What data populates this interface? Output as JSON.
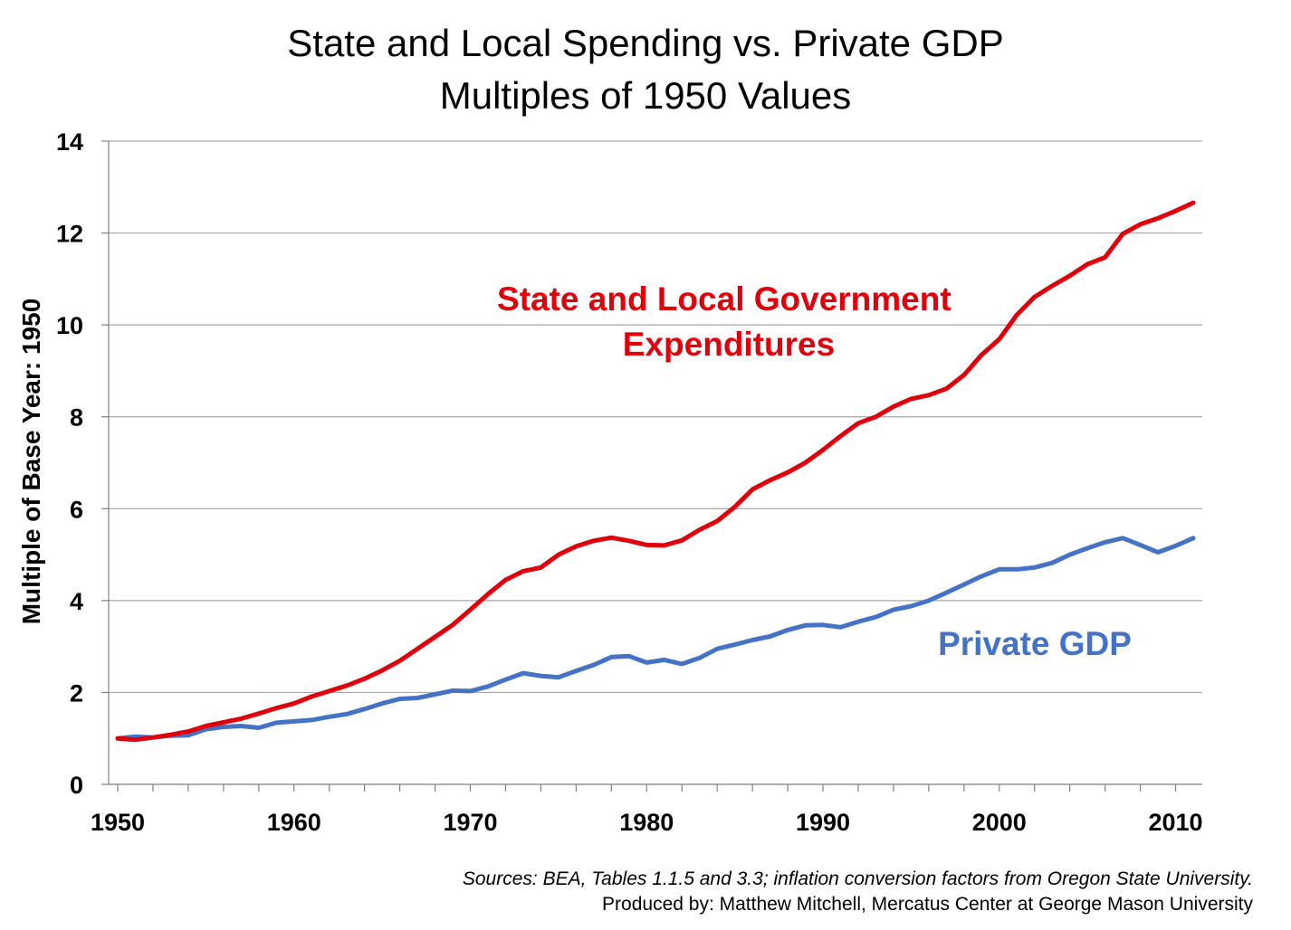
{
  "chart_data": {
    "type": "line",
    "title": [
      "State and Local Spending vs. Private GDP",
      "Multiples of 1950 Values"
    ],
    "xlabel": "",
    "ylabel": "Multiple of Base Year: 1950",
    "xlim": [
      1950,
      2011
    ],
    "ylim": [
      0,
      14
    ],
    "x_ticks": [
      1950,
      1960,
      1970,
      1980,
      1990,
      2000,
      2010
    ],
    "y_ticks": [
      0,
      2,
      4,
      6,
      8,
      10,
      12,
      14
    ],
    "grid": "horizontal",
    "x": [
      1950,
      1951,
      1952,
      1953,
      1954,
      1955,
      1956,
      1957,
      1958,
      1959,
      1960,
      1961,
      1962,
      1963,
      1964,
      1965,
      1966,
      1967,
      1968,
      1969,
      1970,
      1971,
      1972,
      1973,
      1974,
      1975,
      1976,
      1977,
      1978,
      1979,
      1980,
      1981,
      1982,
      1983,
      1984,
      1985,
      1986,
      1987,
      1988,
      1989,
      1990,
      1991,
      1992,
      1993,
      1994,
      1995,
      1996,
      1997,
      1998,
      1999,
      2000,
      2001,
      2002,
      2003,
      2004,
      2005,
      2006,
      2007,
      2008,
      2009,
      2010,
      2011
    ],
    "series": [
      {
        "name": "State and Local Government Expenditures",
        "label_lines": [
          "State and Local Government",
          "Expenditures"
        ],
        "color": "#e0000b",
        "values": [
          1.0,
          0.97,
          1.02,
          1.08,
          1.15,
          1.27,
          1.35,
          1.43,
          1.54,
          1.66,
          1.76,
          1.91,
          2.03,
          2.15,
          2.3,
          2.48,
          2.69,
          2.95,
          3.21,
          3.47,
          3.8,
          4.14,
          4.45,
          4.64,
          4.72,
          5.0,
          5.18,
          5.3,
          5.37,
          5.3,
          5.21,
          5.2,
          5.31,
          5.54,
          5.73,
          6.04,
          6.42,
          6.62,
          6.79,
          7.0,
          7.28,
          7.58,
          7.86,
          8.0,
          8.22,
          8.39,
          8.47,
          8.61,
          8.91,
          9.35,
          9.69,
          10.22,
          10.61,
          10.85,
          11.07,
          11.32,
          11.47,
          11.98,
          12.19,
          12.32,
          12.48,
          12.66
        ]
      },
      {
        "name": "Private GDP",
        "label_lines": [
          "Private GDP"
        ],
        "color": "#4472c4",
        "values": [
          1.0,
          1.04,
          1.02,
          1.06,
          1.07,
          1.2,
          1.25,
          1.27,
          1.23,
          1.34,
          1.37,
          1.4,
          1.47,
          1.53,
          1.64,
          1.76,
          1.86,
          1.88,
          1.96,
          2.04,
          2.03,
          2.13,
          2.28,
          2.42,
          2.36,
          2.33,
          2.47,
          2.6,
          2.77,
          2.79,
          2.65,
          2.71,
          2.62,
          2.75,
          2.95,
          3.04,
          3.14,
          3.22,
          3.36,
          3.46,
          3.47,
          3.42,
          3.54,
          3.64,
          3.8,
          3.88,
          4.0,
          4.17,
          4.35,
          4.53,
          4.68,
          4.68,
          4.72,
          4.82,
          5.0,
          5.14,
          5.27,
          5.36,
          5.21,
          5.05,
          5.19,
          5.36
        ]
      }
    ]
  },
  "footer": {
    "sources": "Sources: BEA, Tables 1.1.5 and 3.3; inflation conversion factors from Oregon State University.",
    "produced_by": "Produced by: Matthew Mitchell,  Mercatus Center at George Mason University"
  }
}
